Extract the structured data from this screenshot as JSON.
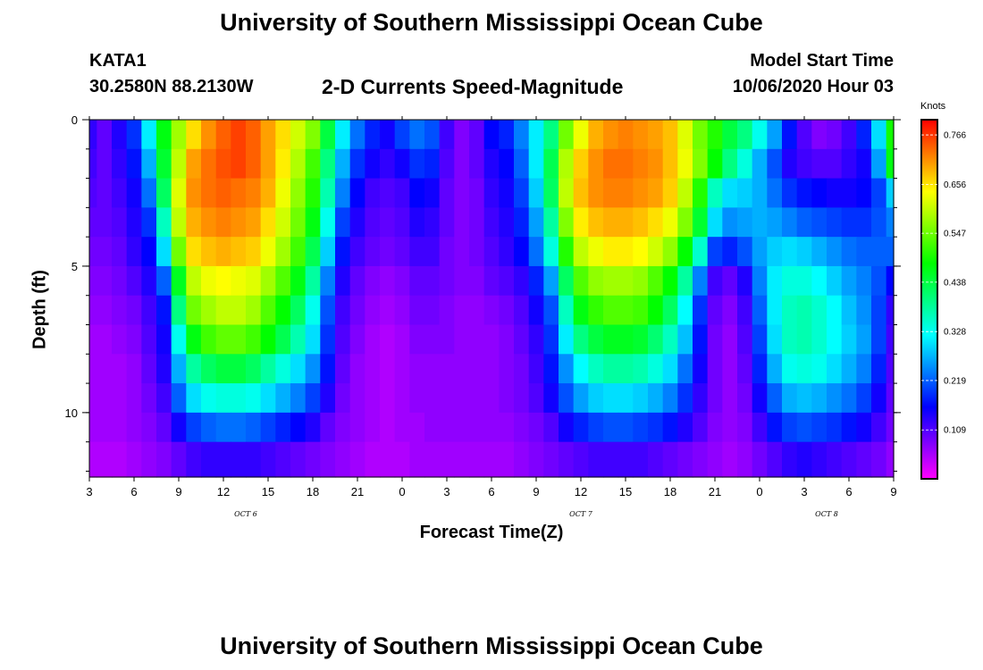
{
  "header": {
    "title": "University of Southern Mississippi Ocean Cube",
    "station": "KATA1",
    "coordinates": "30.2580N 88.2130W",
    "subtitle": "2-D Currents Speed-Magnitude",
    "model_start_label": "Model Start Time",
    "model_start_value": "10/06/2020 Hour 03"
  },
  "footer": {
    "title": "University of Southern Mississippi Ocean Cube"
  },
  "chart_data": {
    "type": "heatmap",
    "title": "2-D Currents Speed-Magnitude",
    "xlabel": "Forecast Time(Z)",
    "ylabel": "Depth (ft)",
    "x_range_hours": [
      0,
      54
    ],
    "x_tick_labels": [
      "3",
      "6",
      "9",
      "12",
      "15",
      "18",
      "21",
      "0",
      "3",
      "6",
      "9",
      "12",
      "15",
      "18",
      "21",
      "0",
      "3",
      "6",
      "9"
    ],
    "day_labels": [
      {
        "label": "OCT 6",
        "hour": 10.5
      },
      {
        "label": "OCT 7",
        "hour": 33
      },
      {
        "label": "OCT 8",
        "hour": 49.5
      }
    ],
    "y_range_ft": [
      0,
      12.2
    ],
    "y_tick_labels": [
      "0",
      "5",
      "10"
    ],
    "y_tick_values": [
      0,
      5,
      10
    ],
    "colorbar": {
      "units": "Knots",
      "min": 0,
      "max": 0.8,
      "tick_labels": [
        "0.766",
        "0.656",
        "0.547",
        "0.438",
        "0.328",
        "0.219",
        "0.109"
      ],
      "tick_values": [
        0.766,
        0.656,
        0.547,
        0.438,
        0.328,
        0.219,
        0.109
      ],
      "colors": [
        "#ff00ff",
        "#8000ff",
        "#0000ff",
        "#0080ff",
        "#00ffff",
        "#00ff80",
        "#00ff00",
        "#80ff00",
        "#ffff00",
        "#ff8000",
        "#ff0000"
      ]
    },
    "depth_levels_ft": [
      0.5,
      1.5,
      2.5,
      3.5,
      4.5,
      5.5,
      6.5,
      7.5,
      8.5,
      9.5,
      10.5,
      11.5
    ],
    "column_hours": [
      0,
      1,
      2,
      3,
      4,
      5,
      6,
      7,
      8,
      9,
      10,
      11,
      12,
      13,
      14,
      15,
      16,
      17,
      18,
      19,
      20,
      21,
      22,
      23,
      24,
      25,
      26,
      27,
      28,
      29,
      30,
      31,
      32,
      33,
      34,
      35,
      36,
      37,
      38,
      39,
      40,
      41,
      42,
      43,
      44,
      45,
      46,
      47,
      48,
      49,
      50,
      51,
      52,
      53,
      54
    ],
    "values_knots": [
      [
        0.13,
        0.1,
        0.14,
        0.19,
        0.31,
        0.47,
        0.58,
        0.66,
        0.71,
        0.74,
        0.76,
        0.74,
        0.7,
        0.66,
        0.61,
        0.56,
        0.44,
        0.31,
        0.23,
        0.18,
        0.15,
        0.2,
        0.23,
        0.21,
        0.12,
        0.08,
        0.1,
        0.16,
        0.18,
        0.24,
        0.31,
        0.4,
        0.55,
        0.63,
        0.69,
        0.71,
        0.72,
        0.71,
        0.7,
        0.68,
        0.62,
        0.55,
        0.5,
        0.44,
        0.4,
        0.33,
        0.26,
        0.17,
        0.11,
        0.08,
        0.09,
        0.12,
        0.18,
        0.3,
        0.49
      ],
      [
        0.12,
        0.1,
        0.13,
        0.17,
        0.27,
        0.45,
        0.6,
        0.7,
        0.73,
        0.75,
        0.76,
        0.74,
        0.7,
        0.65,
        0.59,
        0.52,
        0.4,
        0.27,
        0.19,
        0.15,
        0.13,
        0.15,
        0.19,
        0.18,
        0.11,
        0.08,
        0.1,
        0.14,
        0.16,
        0.22,
        0.31,
        0.43,
        0.59,
        0.67,
        0.71,
        0.73,
        0.73,
        0.72,
        0.71,
        0.68,
        0.63,
        0.56,
        0.48,
        0.4,
        0.34,
        0.27,
        0.21,
        0.14,
        0.12,
        0.11,
        0.11,
        0.13,
        0.15,
        0.26,
        0.47
      ],
      [
        0.11,
        0.1,
        0.12,
        0.15,
        0.23,
        0.42,
        0.62,
        0.71,
        0.73,
        0.74,
        0.73,
        0.72,
        0.69,
        0.63,
        0.57,
        0.5,
        0.37,
        0.24,
        0.16,
        0.12,
        0.11,
        0.12,
        0.16,
        0.15,
        0.1,
        0.08,
        0.09,
        0.13,
        0.15,
        0.2,
        0.29,
        0.42,
        0.6,
        0.68,
        0.71,
        0.72,
        0.72,
        0.71,
        0.7,
        0.67,
        0.6,
        0.5,
        0.36,
        0.3,
        0.29,
        0.27,
        0.23,
        0.19,
        0.17,
        0.16,
        0.15,
        0.15,
        0.16,
        0.2,
        0.29
      ],
      [
        0.1,
        0.1,
        0.11,
        0.14,
        0.19,
        0.36,
        0.6,
        0.69,
        0.71,
        0.72,
        0.71,
        0.7,
        0.66,
        0.61,
        0.55,
        0.47,
        0.33,
        0.2,
        0.14,
        0.11,
        0.1,
        0.11,
        0.14,
        0.13,
        0.1,
        0.08,
        0.09,
        0.12,
        0.14,
        0.18,
        0.26,
        0.38,
        0.56,
        0.65,
        0.68,
        0.69,
        0.69,
        0.68,
        0.66,
        0.63,
        0.56,
        0.45,
        0.3,
        0.25,
        0.26,
        0.27,
        0.26,
        0.24,
        0.22,
        0.21,
        0.2,
        0.19,
        0.19,
        0.21,
        0.24
      ],
      [
        0.09,
        0.09,
        0.1,
        0.13,
        0.16,
        0.3,
        0.55,
        0.66,
        0.68,
        0.69,
        0.68,
        0.67,
        0.63,
        0.58,
        0.52,
        0.43,
        0.29,
        0.17,
        0.12,
        0.1,
        0.09,
        0.1,
        0.12,
        0.12,
        0.09,
        0.08,
        0.09,
        0.11,
        0.13,
        0.16,
        0.23,
        0.34,
        0.5,
        0.6,
        0.63,
        0.65,
        0.65,
        0.64,
        0.61,
        0.57,
        0.48,
        0.35,
        0.2,
        0.18,
        0.21,
        0.26,
        0.29,
        0.3,
        0.29,
        0.27,
        0.25,
        0.23,
        0.22,
        0.22,
        0.22
      ],
      [
        0.08,
        0.08,
        0.09,
        0.11,
        0.14,
        0.22,
        0.46,
        0.6,
        0.63,
        0.64,
        0.63,
        0.62,
        0.58,
        0.53,
        0.47,
        0.38,
        0.24,
        0.14,
        0.1,
        0.08,
        0.07,
        0.08,
        0.1,
        0.1,
        0.09,
        0.08,
        0.08,
        0.1,
        0.11,
        0.13,
        0.18,
        0.26,
        0.42,
        0.53,
        0.57,
        0.58,
        0.58,
        0.57,
        0.53,
        0.48,
        0.38,
        0.24,
        0.12,
        0.1,
        0.14,
        0.24,
        0.31,
        0.34,
        0.34,
        0.32,
        0.29,
        0.26,
        0.24,
        0.21,
        0.16
      ],
      [
        0.07,
        0.07,
        0.08,
        0.09,
        0.12,
        0.17,
        0.4,
        0.55,
        0.58,
        0.6,
        0.6,
        0.58,
        0.53,
        0.48,
        0.42,
        0.33,
        0.21,
        0.12,
        0.09,
        0.07,
        0.06,
        0.07,
        0.09,
        0.09,
        0.08,
        0.07,
        0.07,
        0.08,
        0.09,
        0.11,
        0.15,
        0.21,
        0.36,
        0.47,
        0.51,
        0.53,
        0.53,
        0.52,
        0.48,
        0.42,
        0.32,
        0.19,
        0.1,
        0.08,
        0.12,
        0.22,
        0.31,
        0.36,
        0.37,
        0.35,
        0.32,
        0.28,
        0.25,
        0.2,
        0.13
      ],
      [
        0.06,
        0.06,
        0.07,
        0.08,
        0.11,
        0.15,
        0.33,
        0.47,
        0.52,
        0.54,
        0.54,
        0.52,
        0.48,
        0.43,
        0.37,
        0.3,
        0.19,
        0.11,
        0.08,
        0.06,
        0.05,
        0.06,
        0.08,
        0.08,
        0.08,
        0.07,
        0.07,
        0.07,
        0.08,
        0.1,
        0.13,
        0.19,
        0.31,
        0.4,
        0.44,
        0.46,
        0.46,
        0.45,
        0.41,
        0.36,
        0.28,
        0.17,
        0.09,
        0.07,
        0.11,
        0.2,
        0.3,
        0.36,
        0.37,
        0.35,
        0.32,
        0.29,
        0.26,
        0.2,
        0.12
      ],
      [
        0.06,
        0.06,
        0.06,
        0.07,
        0.1,
        0.14,
        0.27,
        0.38,
        0.42,
        0.44,
        0.44,
        0.42,
        0.38,
        0.34,
        0.3,
        0.25,
        0.17,
        0.1,
        0.07,
        0.06,
        0.05,
        0.06,
        0.07,
        0.07,
        0.07,
        0.07,
        0.07,
        0.07,
        0.08,
        0.09,
        0.12,
        0.17,
        0.25,
        0.32,
        0.36,
        0.38,
        0.38,
        0.37,
        0.34,
        0.3,
        0.23,
        0.15,
        0.09,
        0.07,
        0.1,
        0.18,
        0.27,
        0.33,
        0.34,
        0.33,
        0.3,
        0.27,
        0.24,
        0.18,
        0.11
      ],
      [
        0.06,
        0.06,
        0.06,
        0.07,
        0.09,
        0.12,
        0.22,
        0.3,
        0.33,
        0.34,
        0.34,
        0.33,
        0.3,
        0.27,
        0.24,
        0.2,
        0.14,
        0.09,
        0.07,
        0.06,
        0.05,
        0.06,
        0.07,
        0.07,
        0.07,
        0.07,
        0.07,
        0.07,
        0.08,
        0.09,
        0.11,
        0.15,
        0.21,
        0.26,
        0.29,
        0.3,
        0.3,
        0.29,
        0.27,
        0.24,
        0.19,
        0.13,
        0.09,
        0.07,
        0.09,
        0.15,
        0.22,
        0.27,
        0.28,
        0.27,
        0.25,
        0.23,
        0.2,
        0.15,
        0.1
      ],
      [
        0.06,
        0.06,
        0.06,
        0.07,
        0.08,
        0.1,
        0.15,
        0.2,
        0.22,
        0.23,
        0.23,
        0.22,
        0.2,
        0.18,
        0.16,
        0.14,
        0.1,
        0.08,
        0.07,
        0.06,
        0.05,
        0.06,
        0.06,
        0.07,
        0.07,
        0.07,
        0.07,
        0.07,
        0.07,
        0.08,
        0.09,
        0.11,
        0.15,
        0.18,
        0.2,
        0.21,
        0.21,
        0.2,
        0.19,
        0.17,
        0.14,
        0.11,
        0.08,
        0.07,
        0.08,
        0.12,
        0.17,
        0.2,
        0.21,
        0.2,
        0.19,
        0.17,
        0.15,
        0.12,
        0.09
      ],
      [
        0.05,
        0.05,
        0.05,
        0.06,
        0.07,
        0.08,
        0.1,
        0.12,
        0.13,
        0.13,
        0.13,
        0.13,
        0.12,
        0.11,
        0.1,
        0.09,
        0.08,
        0.07,
        0.06,
        0.05,
        0.05,
        0.05,
        0.06,
        0.06,
        0.06,
        0.06,
        0.06,
        0.06,
        0.06,
        0.07,
        0.08,
        0.09,
        0.1,
        0.11,
        0.12,
        0.12,
        0.12,
        0.12,
        0.11,
        0.1,
        0.09,
        0.08,
        0.07,
        0.06,
        0.07,
        0.09,
        0.11,
        0.13,
        0.14,
        0.13,
        0.12,
        0.11,
        0.1,
        0.09,
        0.07
      ]
    ]
  }
}
